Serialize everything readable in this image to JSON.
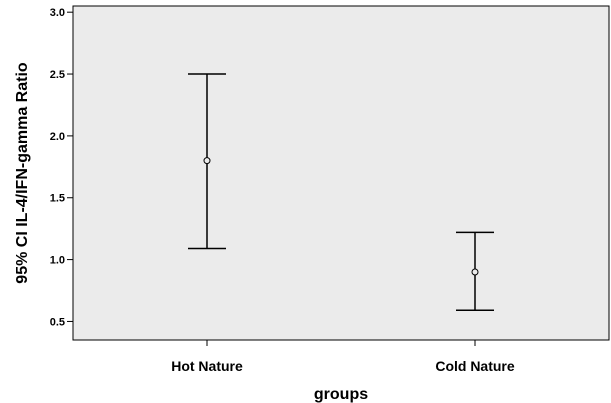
{
  "chart_data": {
    "type": "errorbar",
    "title": "",
    "xlabel": "groups",
    "ylabel": "95% CI IL-4/IFN-gamma Ratio",
    "categories": [
      "Hot Nature",
      "Cold Nature"
    ],
    "points": [
      {
        "category": "Hot Nature",
        "mean": 1.8,
        "ci_low": 1.09,
        "ci_high": 2.5
      },
      {
        "category": "Cold Nature",
        "mean": 0.9,
        "ci_low": 0.59,
        "ci_high": 1.22
      }
    ],
    "ylim": [
      0.35,
      3.05
    ],
    "yticks": [
      0.5,
      1.0,
      1.5,
      2.0,
      2.5,
      3.0
    ],
    "ytick_labels": [
      "0.5",
      "1.0",
      "1.5",
      "2.0",
      "2.5",
      "3.0"
    ],
    "grid": false,
    "colors": {
      "plot_background": "#ebebeb",
      "marks": "#000000"
    }
  }
}
